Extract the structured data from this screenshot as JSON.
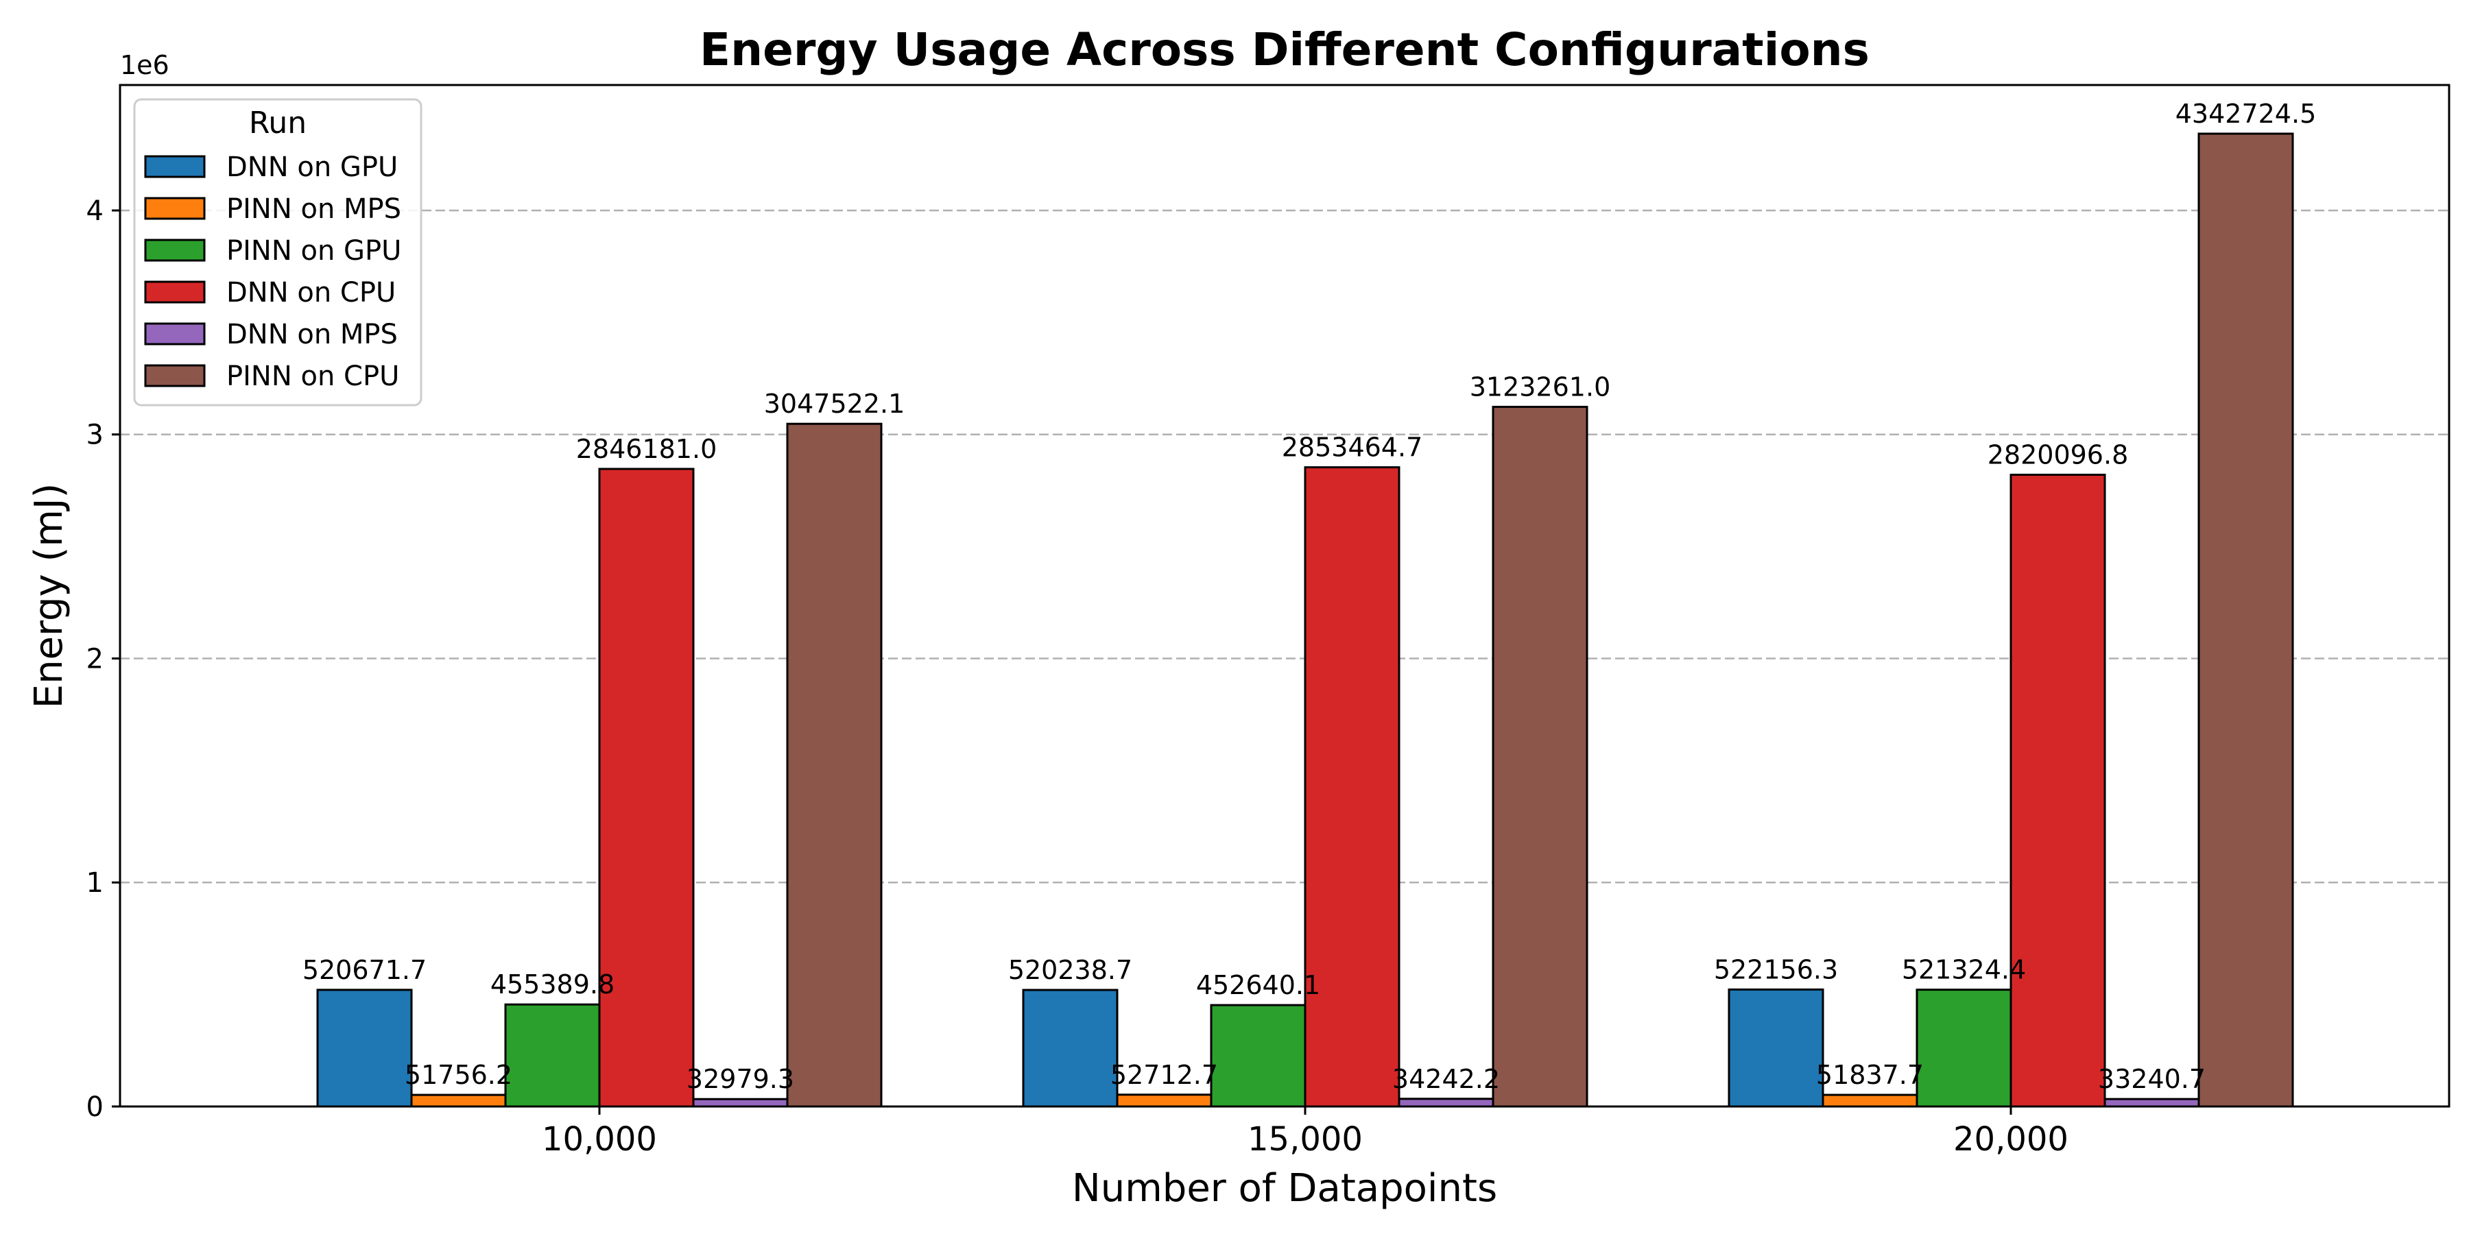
{
  "chart_data": {
    "type": "bar",
    "title": "Energy Usage Across Different Configurations",
    "xlabel": "Number of Datapoints",
    "ylabel": "Energy (mJ)",
    "y_scale_label": "1e6",
    "categories": [
      "10,000",
      "15,000",
      "20,000"
    ],
    "ylim": [
      0,
      4560000
    ],
    "yticks": [
      0,
      1000000,
      2000000,
      3000000,
      4000000
    ],
    "ytick_labels": [
      "0",
      "1",
      "2",
      "3",
      "4"
    ],
    "grid": "y-dashed",
    "legend": {
      "title": "Run",
      "placement": "top-left"
    },
    "series": [
      {
        "name": "DNN on GPU",
        "color": "#1f77b4",
        "values": [
          520671.7,
          520238.7,
          522156.3
        ],
        "labels": [
          "520671.7",
          "520238.7",
          "522156.3"
        ]
      },
      {
        "name": "PINN on MPS",
        "color": "#ff7f0e",
        "values": [
          51756.2,
          52712.7,
          51837.7
        ],
        "labels": [
          "51756.2",
          "52712.7",
          "51837.7"
        ]
      },
      {
        "name": "PINN on GPU",
        "color": "#2ca02c",
        "values": [
          455389.8,
          452640.1,
          521324.4
        ],
        "labels": [
          "455389.8",
          "452640.1",
          "521324.4"
        ]
      },
      {
        "name": "DNN on CPU",
        "color": "#d62728",
        "values": [
          2846181.0,
          2853464.7,
          2820096.8
        ],
        "labels": [
          "2846181.0",
          "2853464.7",
          "2820096.8"
        ]
      },
      {
        "name": "DNN on MPS",
        "color": "#9467bd",
        "values": [
          32979.3,
          34242.2,
          33240.7
        ],
        "labels": [
          "32979.3",
          "34242.2",
          "33240.7"
        ]
      },
      {
        "name": "PINN on CPU",
        "color": "#8c564b",
        "values": [
          3047522.1,
          3123261.0,
          4342724.5
        ],
        "labels": [
          "3047522.1",
          "3123261.0",
          "4342724.5"
        ]
      }
    ]
  }
}
